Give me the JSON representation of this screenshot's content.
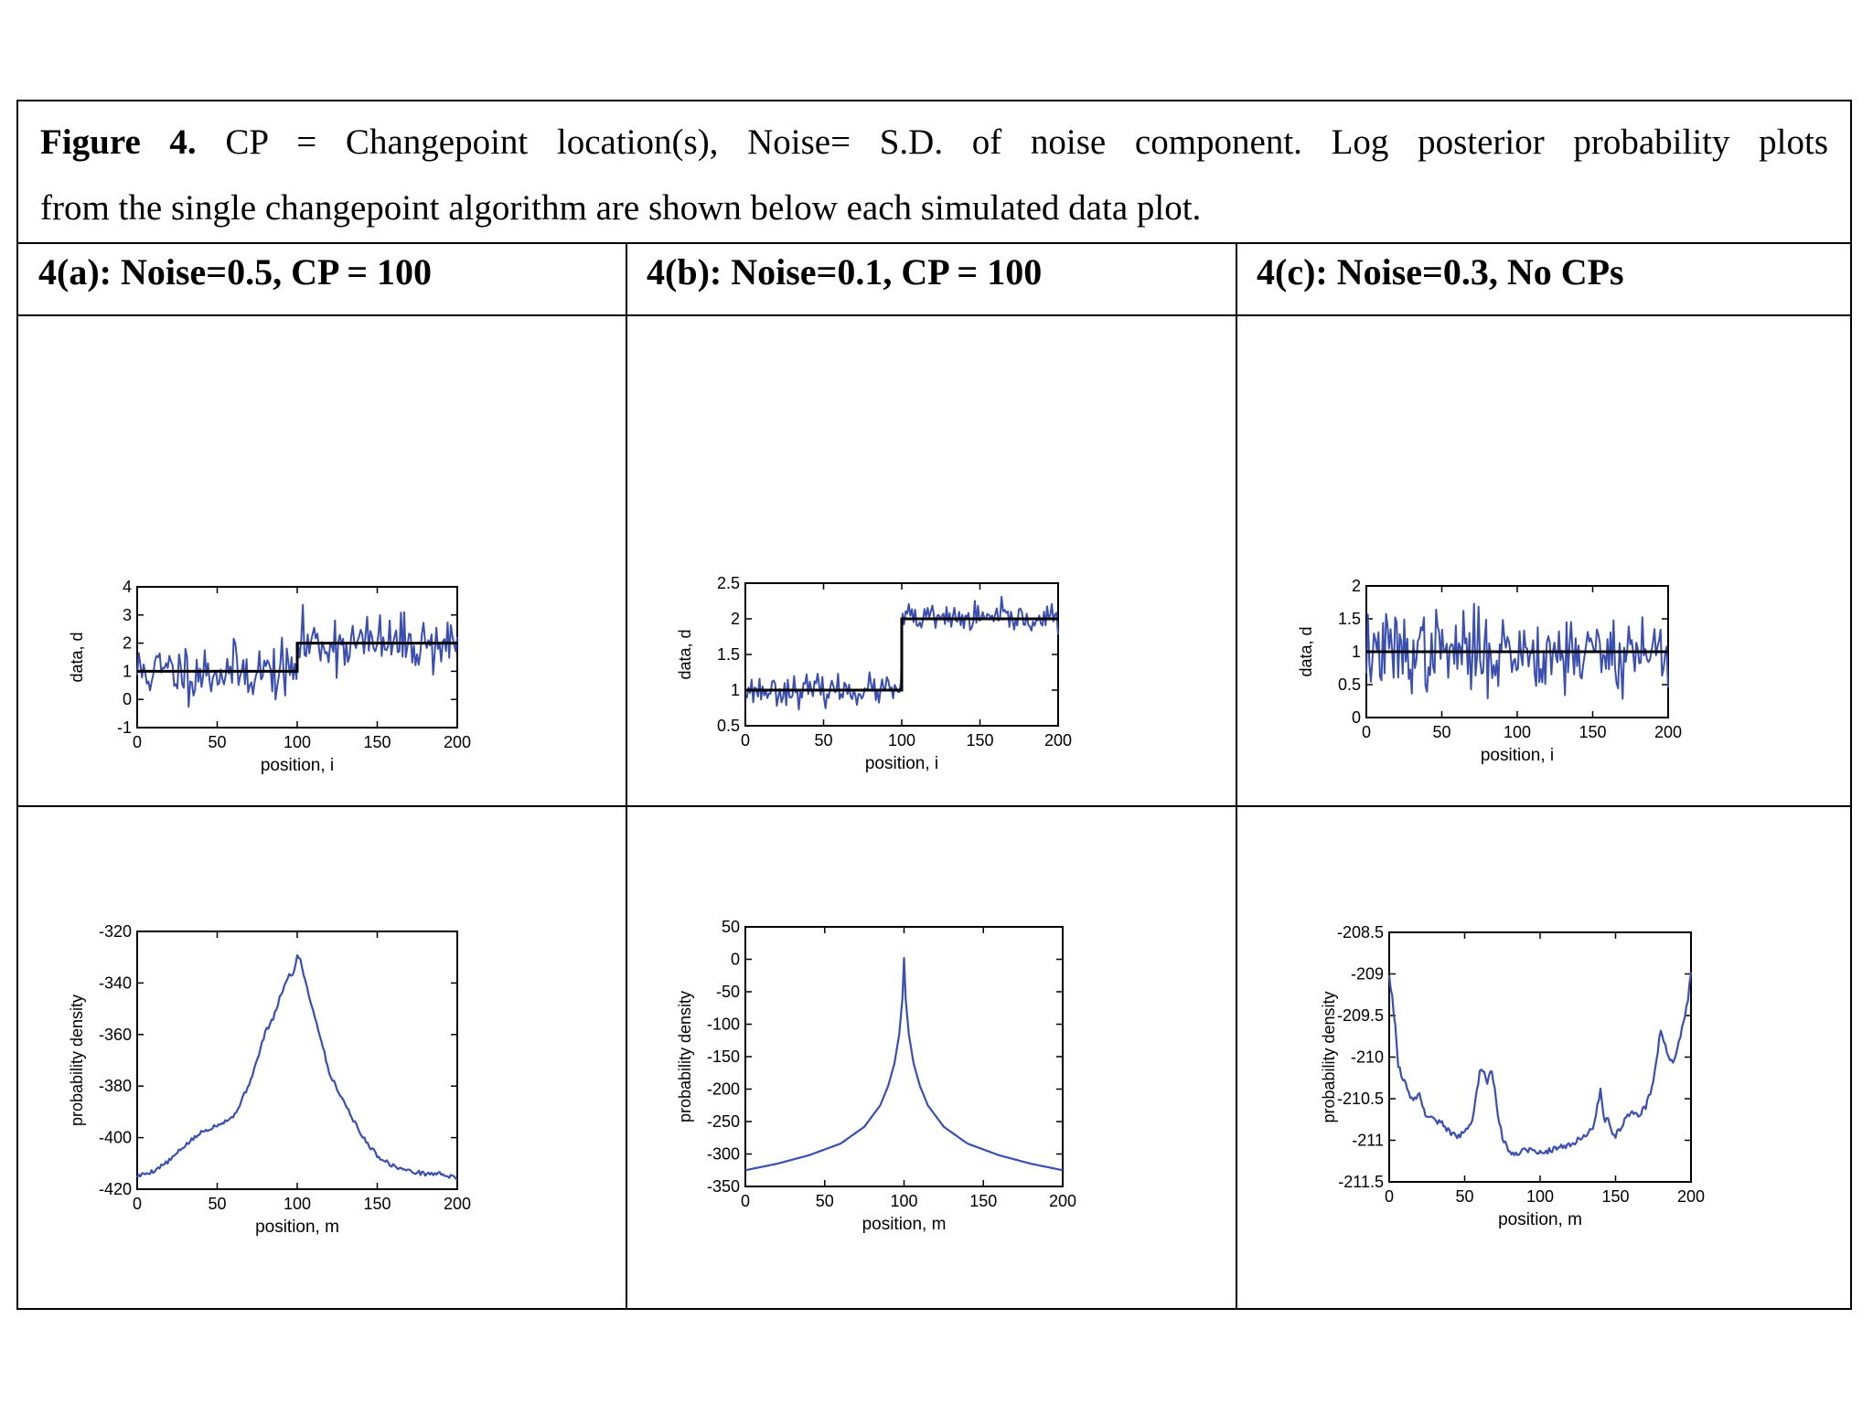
{
  "caption": {
    "figure_label": "Figure 4.",
    "line1_rest": "CP = Changepoint location(s), Noise= S.D. of noise component. Log posterior probability plots",
    "line2": "from the single changepoint algorithm are shown below each simulated data plot."
  },
  "headers": [
    "4(a): Noise=0.5, CP = 100",
    "4(b): Noise=0.1, CP = 100",
    "4(c): Noise=0.3, No CPs"
  ],
  "colors": {
    "series": "#3a4fb0",
    "fit": "#000000"
  },
  "chart_data": [
    {
      "id": "a-data",
      "type": "line",
      "xlabel": "position, i",
      "ylabel": "data, d",
      "xlim": [
        0,
        200
      ],
      "ylim": [
        -1,
        4
      ],
      "xticks": [
        0,
        50,
        100,
        150,
        200
      ],
      "yticks": [
        -1,
        0,
        1,
        2,
        3,
        4
      ],
      "series": [
        {
          "name": "simulated data",
          "kind": "noise",
          "n": 200,
          "seed": 11,
          "segments": [
            [
              0,
              100,
              1
            ],
            [
              100,
              200,
              2
            ]
          ],
          "noise_sd": 0.5
        },
        {
          "name": "changepoint fit",
          "kind": "step",
          "x": [
            0,
            100,
            100,
            200
          ],
          "y": [
            1,
            1,
            2,
            2
          ]
        }
      ]
    },
    {
      "id": "b-data",
      "type": "line",
      "xlabel": "position, i",
      "ylabel": "data, d",
      "xlim": [
        0,
        200
      ],
      "ylim": [
        0.5,
        2.5
      ],
      "xticks": [
        0,
        50,
        100,
        150,
        200
      ],
      "yticks": [
        0.5,
        1,
        1.5,
        2,
        2.5
      ],
      "series": [
        {
          "name": "simulated data",
          "kind": "noise",
          "n": 200,
          "seed": 23,
          "segments": [
            [
              0,
              100,
              1
            ],
            [
              100,
              200,
              2
            ]
          ],
          "noise_sd": 0.1
        },
        {
          "name": "changepoint fit",
          "kind": "step",
          "x": [
            0,
            100,
            100,
            200
          ],
          "y": [
            1,
            1,
            2,
            2
          ]
        }
      ]
    },
    {
      "id": "c-data",
      "type": "line",
      "xlabel": "position, i",
      "ylabel": "data, d",
      "xlim": [
        0,
        200
      ],
      "ylim": [
        0,
        2
      ],
      "xticks": [
        0,
        50,
        100,
        150,
        200
      ],
      "yticks": [
        0,
        0.5,
        1,
        1.5,
        2
      ],
      "series": [
        {
          "name": "simulated data",
          "kind": "noise",
          "n": 200,
          "seed": 37,
          "segments": [
            [
              0,
              200,
              1
            ]
          ],
          "noise_sd": 0.3
        },
        {
          "name": "mean",
          "kind": "step",
          "x": [
            0,
            200
          ],
          "y": [
            1,
            1
          ]
        }
      ]
    },
    {
      "id": "a-post",
      "type": "line",
      "xlabel": "position, m",
      "ylabel": "probability density",
      "xlim": [
        0,
        200
      ],
      "ylim": [
        -420,
        -320
      ],
      "xticks": [
        0,
        50,
        100,
        150,
        200
      ],
      "yticks": [
        -420,
        -400,
        -380,
        -360,
        -340,
        -320
      ],
      "series": [
        {
          "name": "log posterior",
          "kind": "line",
          "jitter": 0.8,
          "seed": 5,
          "x": [
            0,
            10,
            20,
            30,
            40,
            50,
            60,
            65,
            70,
            75,
            80,
            85,
            90,
            95,
            98,
            100,
            102,
            105,
            110,
            115,
            120,
            125,
            130,
            140,
            150,
            160,
            170,
            180,
            190,
            200
          ],
          "y": [
            -415,
            -413,
            -409,
            -403,
            -398,
            -395,
            -392,
            -386,
            -379,
            -370,
            -359,
            -354,
            -344,
            -337,
            -336,
            -329,
            -331,
            -339,
            -351,
            -362,
            -375,
            -381,
            -387,
            -399,
            -407,
            -411,
            -413,
            -414,
            -414,
            -416
          ]
        }
      ]
    },
    {
      "id": "b-post",
      "type": "line",
      "xlabel": "position, m",
      "ylabel": "probability density",
      "xlim": [
        0,
        200
      ],
      "ylim": [
        -350,
        50
      ],
      "xticks": [
        0,
        50,
        100,
        150,
        200
      ],
      "yticks": [
        -350,
        -300,
        -250,
        -200,
        -150,
        -100,
        -50,
        0,
        50
      ],
      "series": [
        {
          "name": "log posterior",
          "kind": "line",
          "jitter": 0,
          "x": [
            0,
            20,
            40,
            60,
            75,
            85,
            90,
            94,
            97,
            99,
            100,
            101,
            103,
            106,
            110,
            115,
            125,
            140,
            160,
            180,
            200
          ],
          "y": [
            -325,
            -315,
            -302,
            -284,
            -258,
            -225,
            -195,
            -160,
            -115,
            -60,
            2,
            -60,
            -115,
            -160,
            -195,
            -225,
            -258,
            -284,
            -302,
            -315,
            -325
          ]
        }
      ]
    },
    {
      "id": "c-post",
      "type": "line",
      "xlabel": "position, m",
      "ylabel": "probability density",
      "xlim": [
        0,
        200
      ],
      "ylim": [
        -211.5,
        -208.5
      ],
      "xticks": [
        0,
        50,
        100,
        150,
        200
      ],
      "yticks": [
        -211.5,
        -211,
        -210.5,
        -210,
        -209.5,
        -209,
        -208.5
      ],
      "series": [
        {
          "name": "log posterior",
          "kind": "line",
          "jitter": 0.035,
          "seed": 9,
          "x": [
            0,
            2,
            4,
            6,
            10,
            15,
            20,
            23,
            25,
            30,
            35,
            40,
            45,
            50,
            55,
            60,
            62,
            65,
            68,
            70,
            72,
            75,
            78,
            80,
            85,
            90,
            100,
            110,
            120,
            130,
            135,
            140,
            143,
            145,
            148,
            150,
            155,
            160,
            165,
            170,
            175,
            180,
            182,
            185,
            188,
            190,
            195,
            198,
            200
          ],
          "y": [
            -209.0,
            -209.3,
            -209.6,
            -210.1,
            -210.3,
            -210.5,
            -210.45,
            -210.65,
            -210.7,
            -210.75,
            -210.8,
            -210.9,
            -210.95,
            -210.92,
            -210.75,
            -210.2,
            -210.15,
            -210.3,
            -210.15,
            -210.4,
            -210.7,
            -210.95,
            -211.1,
            -211.15,
            -211.15,
            -211.1,
            -211.15,
            -211.1,
            -211.05,
            -210.95,
            -210.85,
            -210.4,
            -210.8,
            -210.7,
            -210.9,
            -210.95,
            -210.8,
            -210.65,
            -210.7,
            -210.6,
            -210.3,
            -209.65,
            -209.8,
            -210.0,
            -210.05,
            -209.95,
            -209.6,
            -209.3,
            -208.95
          ]
        }
      ]
    }
  ]
}
